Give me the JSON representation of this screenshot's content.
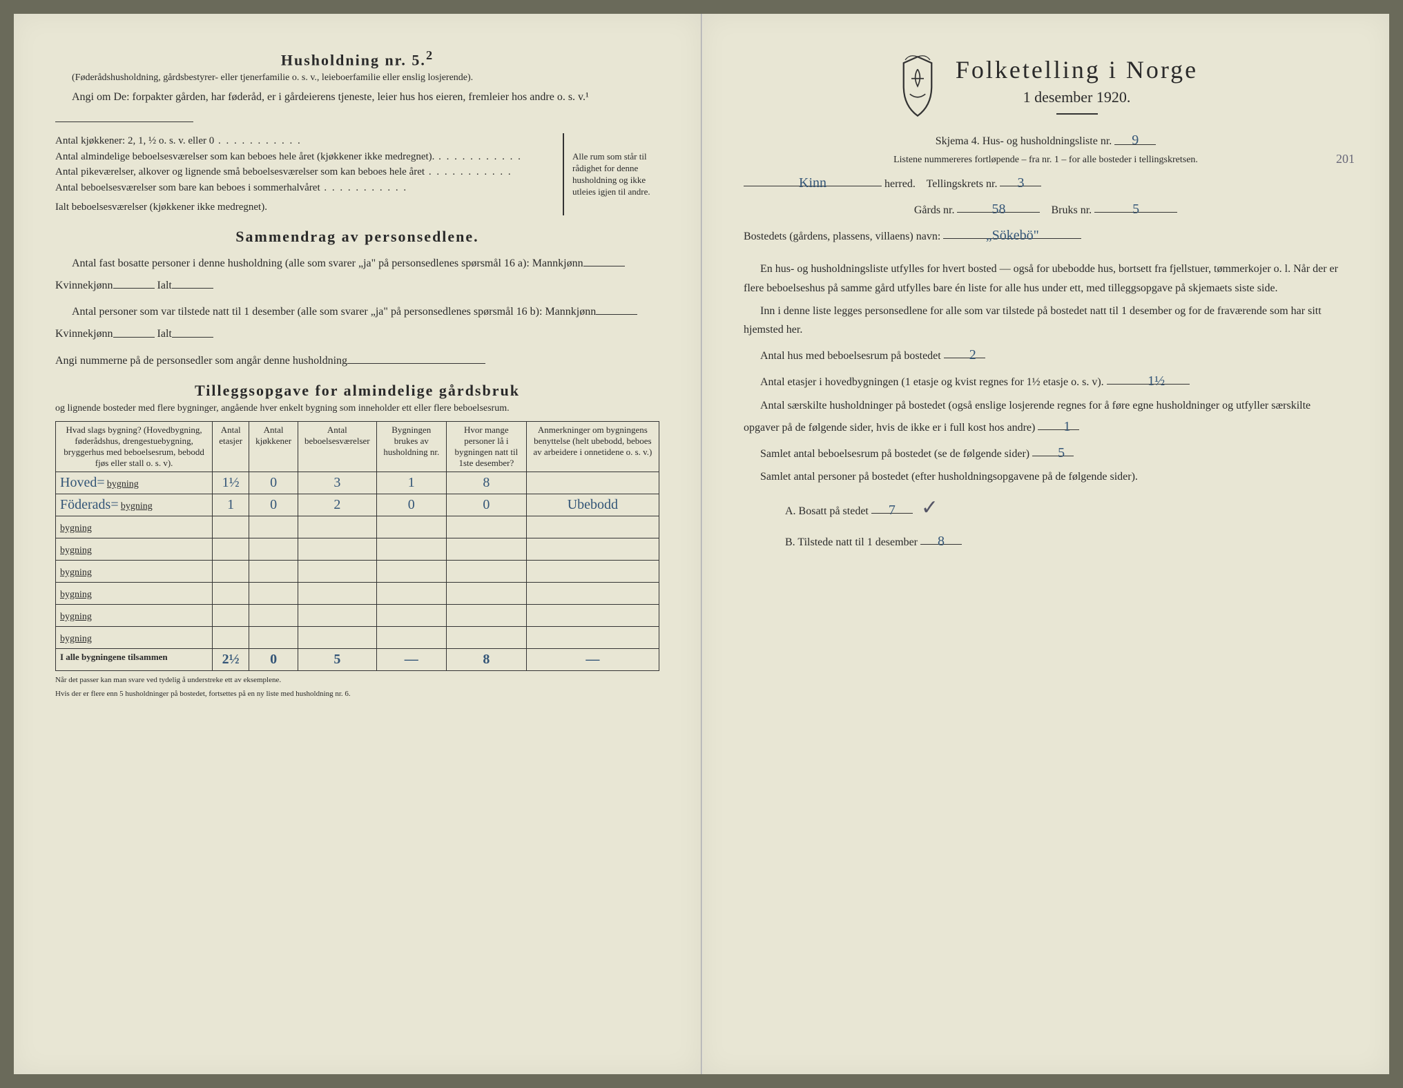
{
  "left": {
    "household_title": "Husholdning nr. 5.",
    "household_sup": "2",
    "household_note": "(Føderådshusholdning, gårdsbestyrer- eller tjenerfamilie o. s. v., leieboerfamilie eller enslig losjerende).",
    "angiOm_label": "Angi om De:",
    "angiOm_text": "forpakter gården, har føderåd, er i gårdeierens tjeneste, leier hus hos eieren, fremleier hos andre o. s. v.¹",
    "kjokkener_label": "Antal kjøkkener: 2, 1, ½ o. s. v. eller 0",
    "rooms_line1": "Antal almindelige beboelsesværelser som kan beboes hele året (kjøkkener ikke medregnet).",
    "rooms_line2": "Antal pikeværelser, alkover og lignende små beboelsesværelser som kan beboes hele året",
    "rooms_line3": "Antal beboelsesværelser som bare kan beboes i sommerhalvåret",
    "rooms_total": "Ialt beboelsesværelser  (kjøkkener ikke medregnet).",
    "brace_note": "Alle rum som står til rådighet for denne husholdning og ikke utleies igjen til andre.",
    "sammendrag_title": "Sammendrag av personsedlene.",
    "sammendrag_p1a": "Antal fast bosatte personer i denne husholdning (alle som svarer „ja\" på personsedlenes spørsmål 16 a): Mannkjønn",
    "sammendrag_p1b": "Kvinnekjønn",
    "sammendrag_p1c": "Ialt",
    "sammendrag_p2a": "Antal personer som var tilstede natt til 1 desember (alle som svarer „ja\" på personsedlenes spørsmål 16 b): Mannkjønn",
    "sammendrag_p2b": "Kvinnekjønn",
    "sammendrag_p2c": "Ialt",
    "sammendrag_p3": "Angi nummerne på de personsedler som angår denne husholdning",
    "tillegg_title": "Tilleggsopgave for almindelige gårdsbruk",
    "tillegg_sub": "og lignende bosteder med flere bygninger, angående hver enkelt bygning som inneholder ett eller flere beboelsesrum.",
    "table": {
      "headers": [
        "Hvad slags bygning?\n(Hovedbygning, føderådshus, drengestuebygning, bryggerhus med beboelsesrum, bebodd fjøs eller stall o. s. v).",
        "Antal etasjer",
        "Antal kjøkkener",
        "Antal beboelsesværelser",
        "Bygningen brukes av husholdning nr.",
        "Hvor mange personer lå i bygningen natt til 1ste desember?",
        "Anmerkninger om bygningens benyttelse (helt ubebodd, beboes av arbeidere i onnetidene o. s. v.)"
      ],
      "row_label_suffix": "bygning",
      "rows": [
        {
          "name": "Hoved=",
          "etasjer": "1½",
          "kjokken": "0",
          "beboelse": "3",
          "hushold": "1",
          "personer": "8",
          "anm": ""
        },
        {
          "name": "Föderads=",
          "etasjer": "1",
          "kjokken": "0",
          "beboelse": "2",
          "hushold": "0",
          "personer": "0",
          "anm": "Ubebodd"
        },
        {
          "name": "",
          "etasjer": "",
          "kjokken": "",
          "beboelse": "",
          "hushold": "",
          "personer": "",
          "anm": ""
        },
        {
          "name": "",
          "etasjer": "",
          "kjokken": "",
          "beboelse": "",
          "hushold": "",
          "personer": "",
          "anm": ""
        },
        {
          "name": "",
          "etasjer": "",
          "kjokken": "",
          "beboelse": "",
          "hushold": "",
          "personer": "",
          "anm": ""
        },
        {
          "name": "",
          "etasjer": "",
          "kjokken": "",
          "beboelse": "",
          "hushold": "",
          "personer": "",
          "anm": ""
        },
        {
          "name": "",
          "etasjer": "",
          "kjokken": "",
          "beboelse": "",
          "hushold": "",
          "personer": "",
          "anm": ""
        },
        {
          "name": "",
          "etasjer": "",
          "kjokken": "",
          "beboelse": "",
          "hushold": "",
          "personer": "",
          "anm": ""
        }
      ],
      "total_label": "I alle bygningene tilsammen",
      "totals": {
        "etasjer": "2½",
        "kjokken": "0",
        "beboelse": "5",
        "hushold": "—",
        "personer": "8",
        "anm": "—"
      }
    },
    "footnote1": "Når det passer kan man svare ved tydelig å understreke ett av eksemplene.",
    "footnote2": "Hvis der er flere enn 5 husholdninger på bostedet, fortsettes på en ny liste med husholdning nr. 6."
  },
  "right": {
    "title": "Folketelling i Norge",
    "subtitle": "1 desember 1920.",
    "skjema_label": "Skjema 4.  Hus- og husholdningsliste nr.",
    "skjema_nr": "9",
    "listene_note": "Listene nummereres fortløpende – fra nr. 1 – for alle bosteder i tellingskretsen.",
    "margin_note": "201",
    "herred_value": "Kinn",
    "herred_label": "herred.",
    "tellingskrets_label": "Tellingskrets nr.",
    "tellingskrets_nr": "3",
    "gards_label": "Gårds nr.",
    "gards_nr": "58",
    "bruks_label": "Bruks nr.",
    "bruks_nr": "5",
    "bosted_label": "Bostedets (gårdens, plassens, villaens) navn:",
    "bosted_name": "„Sökebö\"",
    "p1": "En hus- og husholdningsliste utfylles for hvert bosted — også for ubebodde hus, bortsett fra fjellstuer, tømmerkojer o. l.  Når der er flere beboelseshus på samme gård utfylles bare én liste for alle hus under ett, med tilleggsopgave på skjemaets siste side.",
    "p2": "Inn i denne liste legges personsedlene for alle som var tilstede på bostedet natt til 1 desember og for de fraværende som har sitt hjemsted her.",
    "antal_hus_label": "Antal hus med beboelsesrum på bostedet",
    "antal_hus": "2",
    "antal_etasjer_label_a": "Antal etasjer i hovedbygningen (1 etasje og kvist regnes for 1½ etasje o. s. v).",
    "antal_etasjer": "1½",
    "antal_hushold_label": "Antal særskilte husholdninger på bostedet (også enslige losjerende regnes for å føre egne husholdninger og utfyller særskilte opgaver på de følgende sider, hvis de ikke er i full kost hos andre)",
    "antal_hushold": "1",
    "samlet_beboelse_label": "Samlet antal beboelsesrum på bostedet (se de følgende sider)",
    "samlet_beboelse": "5",
    "samlet_personer_label": "Samlet antal personer på bostedet (efter husholdningsopgavene på de følgende sider).",
    "bosatt_label": "A.  Bosatt på stedet",
    "bosatt": "7",
    "tilstede_label": "B.  Tilstede natt til 1 desember",
    "tilstede": "8"
  },
  "colors": {
    "paper": "#e8e6d4",
    "ink": "#2a2a2a",
    "handwriting": "#335577"
  }
}
